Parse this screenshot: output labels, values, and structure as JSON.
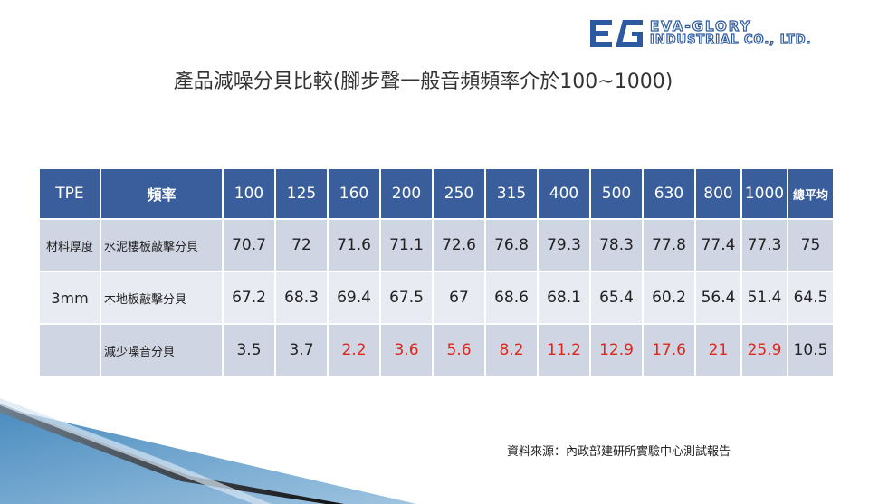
{
  "logo": {
    "line1": "EVA-GLORY",
    "line2": "INDUSTRIAL CO., LTD.",
    "mark_icon": "eg-logo-icon",
    "brand_color": "#2c5aa0"
  },
  "title": "產品減噪分貝比較(腳步聲一般音頻頻率介於100~1000)",
  "table": {
    "header": {
      "col0": "TPE",
      "col1": "頻率",
      "frequencies": [
        "100",
        "125",
        "160",
        "200",
        "250",
        "315",
        "400",
        "500",
        "630",
        "800",
        "1000"
      ],
      "avg": "總平均"
    },
    "rows": [
      {
        "head": "材料厚度",
        "label": "水泥樓板敲擊分貝",
        "values": [
          "70.7",
          "72",
          "71.6",
          "71.1",
          "72.6",
          "76.8",
          "79.3",
          "78.3",
          "77.8",
          "77.4",
          "77.3"
        ],
        "avg": "75"
      },
      {
        "head": "3mm",
        "label": "木地板敲擊分貝",
        "values": [
          "67.2",
          "68.3",
          "69.4",
          "67.5",
          "67",
          "68.6",
          "68.1",
          "65.4",
          "60.2",
          "56.4",
          "51.4"
        ],
        "avg": "64.5"
      },
      {
        "head": "",
        "label": "減少噪音分貝",
        "values": [
          "3.5",
          "3.7",
          "2.2",
          "3.6",
          "5.6",
          "8.2",
          "11.2",
          "12.9",
          "17.6",
          "21",
          "25.9"
        ],
        "avg": "10.5"
      }
    ],
    "colors": {
      "header_bg": "#3a5e9c",
      "row_dark": "#cfd5e3",
      "row_light": "#e8ebf2",
      "highlight": "#e0261c"
    }
  },
  "source": "資料來源：內政部建研所實驗中心測試報告"
}
